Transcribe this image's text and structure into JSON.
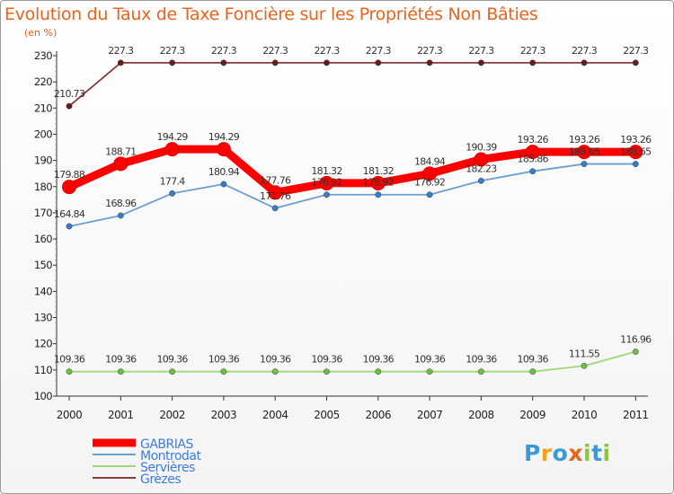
{
  "title": "Evolution du Taux de Taxe Foncière sur les Propriétés Non Bâties",
  "unit_label": "(en %)",
  "logo": {
    "letters": [
      "P",
      "r",
      "o",
      "x",
      "i",
      "t",
      "i"
    ],
    "colors": [
      "#3a9ad9",
      "#f3a21c",
      "#3a9ad9",
      "#e8641c",
      "#8cc63e",
      "#3a9ad9",
      "#8cc63e"
    ]
  },
  "chart_data": {
    "type": "line",
    "title": "Evolution du Taux de Taxe Foncière sur les Propriétés Non Bâties",
    "ylabel": "(en %)",
    "x": [
      "2000",
      "2001",
      "2002",
      "2003",
      "2004",
      "2005",
      "2006",
      "2007",
      "2008",
      "2009",
      "2010",
      "2011"
    ],
    "ylim": [
      100,
      230
    ],
    "yticks": [
      "100",
      "110",
      "120",
      "130",
      "140",
      "150",
      "160",
      "170",
      "180",
      "190",
      "200",
      "210",
      "220",
      "230"
    ],
    "grid": false,
    "legend_position": "bottom-left",
    "series": [
      {
        "name": "GABRIAS",
        "color": "#ff0000",
        "bold": true,
        "values": [
          179.88,
          188.71,
          194.29,
          194.29,
          177.76,
          181.32,
          181.32,
          184.94,
          190.39,
          193.26,
          193.26,
          193.26
        ],
        "labels": [
          "179.88",
          "188.71",
          "194.29",
          "194.29",
          "177.76",
          "181.32",
          "181.32",
          "184.94",
          "190.39",
          "193.26",
          "193.26",
          "193.26"
        ]
      },
      {
        "name": "Montrodat",
        "color": "#6a9fd2",
        "marker": "#3a7cc4",
        "values": [
          164.84,
          168.96,
          177.4,
          180.94,
          171.76,
          176.92,
          176.92,
          176.92,
          182.23,
          185.86,
          188.65,
          188.65
        ],
        "labels": [
          "164.84",
          "168.96",
          "177.4",
          "180.94",
          "171.76",
          "176.92",
          "176.92",
          "176.92",
          "182.23",
          "185.86",
          "188.65",
          "188.65"
        ]
      },
      {
        "name": "Servières",
        "color": "#9fd87a",
        "marker": "#6cc040",
        "values": [
          109.36,
          109.36,
          109.36,
          109.36,
          109.36,
          109.36,
          109.36,
          109.36,
          109.36,
          109.36,
          111.55,
          116.96
        ],
        "labels": [
          "109.36",
          "109.36",
          "109.36",
          "109.36",
          "109.36",
          "109.36",
          "109.36",
          "109.36",
          "109.36",
          "109.36",
          "111.55",
          "116.96"
        ]
      },
      {
        "name": "Grèzes",
        "color": "#8a3a3a",
        "marker": "#6a1a1a",
        "values": [
          210.73,
          227.3,
          227.3,
          227.3,
          227.3,
          227.3,
          227.3,
          227.3,
          227.3,
          227.3,
          227.3,
          227.3
        ],
        "labels": [
          "210.73",
          "227.3",
          "227.3",
          "227.3",
          "227.3",
          "227.3",
          "227.3",
          "227.3",
          "227.3",
          "227.3",
          "227.3",
          "227.3"
        ]
      }
    ]
  }
}
